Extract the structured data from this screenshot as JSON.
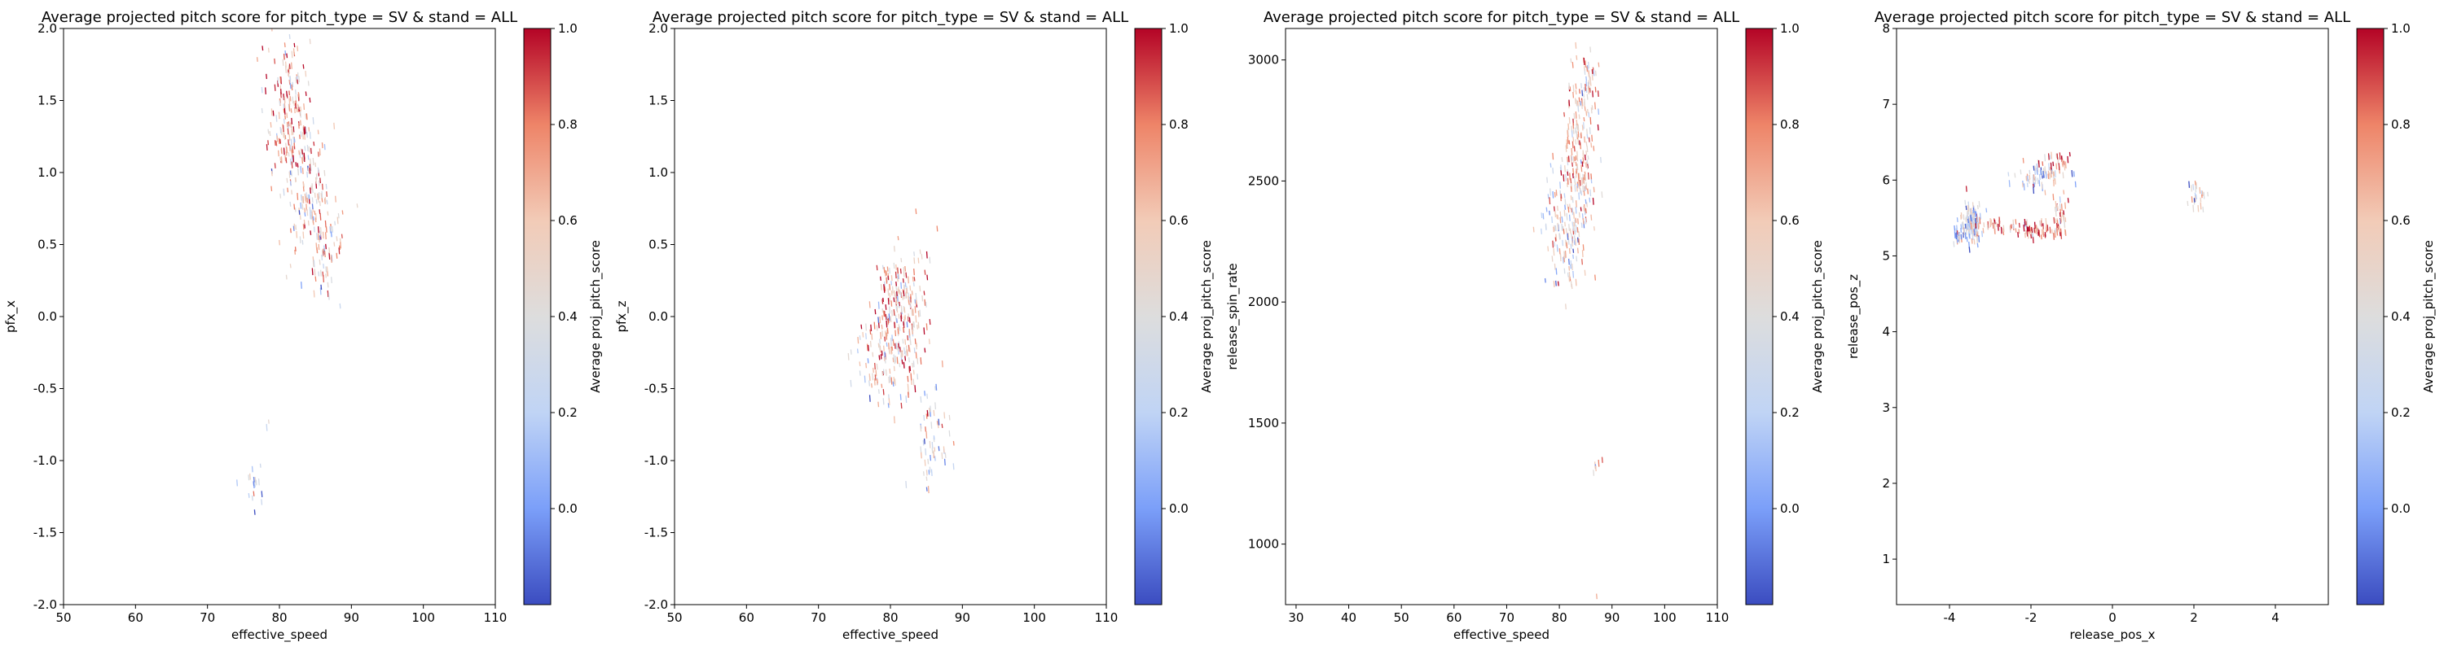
{
  "colorbar": {
    "label": "Average proj_pitch_score",
    "cmap": "coolwarm",
    "colors": [
      "#3b4cc0",
      "#7b9ff9",
      "#c0d4f5",
      "#dddddd",
      "#f2cbb7",
      "#ee8468",
      "#b40426"
    ]
  },
  "chart_data": [
    {
      "type": "scatter",
      "title": "Average projected pitch score for pitch_type = SV & stand = ALL",
      "xlabel": "effective_speed",
      "ylabel": "pfx_x",
      "xlim": [
        50,
        110
      ],
      "ylim": [
        -2.0,
        2.0
      ],
      "xticks": [
        "50",
        "60",
        "70",
        "80",
        "90",
        "100",
        "110"
      ],
      "yticks": [
        "-2.0",
        "-1.5",
        "-1.0",
        "-0.5",
        "0.0",
        "0.5",
        "1.0",
        "1.5",
        "2.0"
      ],
      "cbar_range": [
        -0.2,
        1.0
      ],
      "cbar_ticks": [
        "0.0",
        "0.2",
        "0.4",
        "0.6",
        "0.8",
        "1.0"
      ],
      "grid": false,
      "clusters": [
        {
          "x": 81.5,
          "y": 1.35,
          "sx": 1.6,
          "sy": 0.22,
          "n": 170,
          "mean_score": 0.65
        },
        {
          "x": 84.5,
          "y": 0.8,
          "sx": 1.8,
          "sy": 0.25,
          "n": 140,
          "mean_score": 0.6
        },
        {
          "x": 86.5,
          "y": 0.45,
          "sx": 1.3,
          "sy": 0.15,
          "n": 60,
          "mean_score": 0.5
        },
        {
          "x": 80.5,
          "y": 1.75,
          "sx": 1.2,
          "sy": 0.1,
          "n": 30,
          "mean_score": 0.55
        },
        {
          "x": 76.0,
          "y": -1.2,
          "sx": 0.7,
          "sy": 0.1,
          "n": 18,
          "mean_score": 0.3
        },
        {
          "x": 78.5,
          "y": -0.75,
          "sx": 0.3,
          "sy": 0.05,
          "n": 2,
          "mean_score": 0.2
        }
      ]
    },
    {
      "type": "scatter",
      "title": "Average projected pitch score for pitch_type = SV & stand = ALL",
      "xlabel": "effective_speed",
      "ylabel": "pfx_z",
      "xlim": [
        50,
        110
      ],
      "ylim": [
        -2.0,
        2.0
      ],
      "xticks": [
        "50",
        "60",
        "70",
        "80",
        "90",
        "100",
        "110"
      ],
      "yticks": [
        "-2.0",
        "-1.5",
        "-1.0",
        "-0.5",
        "0.0",
        "0.5",
        "1.0",
        "1.5",
        "2.0"
      ],
      "cbar_range": [
        -0.2,
        1.0
      ],
      "cbar_ticks": [
        "0.0",
        "0.2",
        "0.4",
        "0.6",
        "0.8",
        "1.0"
      ],
      "grid": false,
      "clusters": [
        {
          "x": 81.0,
          "y": -0.1,
          "sx": 2.0,
          "sy": 0.22,
          "n": 220,
          "mean_score": 0.6
        },
        {
          "x": 82.0,
          "y": 0.25,
          "sx": 1.8,
          "sy": 0.15,
          "n": 80,
          "mean_score": 0.65
        },
        {
          "x": 86.0,
          "y": -0.85,
          "sx": 1.2,
          "sy": 0.15,
          "n": 60,
          "mean_score": 0.4
        },
        {
          "x": 78.0,
          "y": -0.4,
          "sx": 1.5,
          "sy": 0.15,
          "n": 40,
          "mean_score": 0.5
        }
      ]
    },
    {
      "type": "scatter",
      "title": "Average projected pitch score for pitch_type = SV & stand = ALL",
      "xlabel": "effective_speed",
      "ylabel": "release_spin_rate",
      "xlim": [
        28,
        110
      ],
      "ylim": [
        750,
        3130
      ],
      "xticks": [
        "30",
        "40",
        "50",
        "60",
        "70",
        "80",
        "90",
        "100",
        "110"
      ],
      "yticks": [
        "1000",
        "1500",
        "2000",
        "2500",
        "3000"
      ],
      "cbar_range": [
        -0.2,
        1.0
      ],
      "cbar_ticks": [
        "0.0",
        "0.2",
        "0.4",
        "0.6",
        "0.8",
        "1.0"
      ],
      "grid": false,
      "clusters": [
        {
          "x": 84.0,
          "y": 2600,
          "sx": 1.6,
          "sy": 160,
          "n": 180,
          "mean_score": 0.65
        },
        {
          "x": 81.0,
          "y": 2300,
          "sx": 2.0,
          "sy": 110,
          "n": 150,
          "mean_score": 0.45
        },
        {
          "x": 85.0,
          "y": 2900,
          "sx": 1.2,
          "sy": 60,
          "n": 40,
          "mean_score": 0.6
        },
        {
          "x": 87.0,
          "y": 1330,
          "sx": 0.4,
          "sy": 30,
          "n": 6,
          "mean_score": 0.6
        },
        {
          "x": 87.0,
          "y": 790,
          "sx": 0.2,
          "sy": 5,
          "n": 1,
          "mean_score": 0.5
        }
      ]
    },
    {
      "type": "scatter",
      "title": "Average projected pitch score for pitch_type = SV & stand = ALL",
      "xlabel": "release_pos_x",
      "ylabel": "release_pos_z",
      "xlim": [
        -5.3,
        5.3
      ],
      "ylim": [
        0.4,
        8.0
      ],
      "xticks": [
        "-4",
        "-2",
        "0",
        "2",
        "4"
      ],
      "yticks": [
        "1",
        "2",
        "3",
        "4",
        "5",
        "6",
        "7",
        "8"
      ],
      "cbar_range": [
        -0.2,
        1.0
      ],
      "cbar_ticks": [
        "0.0",
        "0.2",
        "0.4",
        "0.6",
        "0.8",
        "1.0"
      ],
      "grid": false,
      "clusters": [
        {
          "x": -3.45,
          "y": 5.45,
          "sx": 0.12,
          "sy": 0.12,
          "n": 130,
          "mean_score": 0.35
        },
        {
          "x": -3.75,
          "y": 5.25,
          "sx": 0.12,
          "sy": 0.06,
          "n": 30,
          "mean_score": 0.15
        },
        {
          "x": -2.9,
          "y": 5.4,
          "sx": 0.2,
          "sy": 0.05,
          "n": 25,
          "mean_score": 0.7
        },
        {
          "x": -1.8,
          "y": 6.05,
          "sx": 0.35,
          "sy": 0.08,
          "n": 70,
          "mean_score": 0.3
        },
        {
          "x": -1.3,
          "y": 6.25,
          "sx": 0.2,
          "sy": 0.08,
          "n": 25,
          "mean_score": 0.8
        },
        {
          "x": -1.9,
          "y": 5.35,
          "sx": 0.3,
          "sy": 0.05,
          "n": 70,
          "mean_score": 0.75
        },
        {
          "x": -1.3,
          "y": 5.5,
          "sx": 0.12,
          "sy": 0.15,
          "n": 45,
          "mean_score": 0.75
        },
        {
          "x": 2.05,
          "y": 5.8,
          "sx": 0.12,
          "sy": 0.08,
          "n": 25,
          "mean_score": 0.45
        }
      ]
    }
  ]
}
